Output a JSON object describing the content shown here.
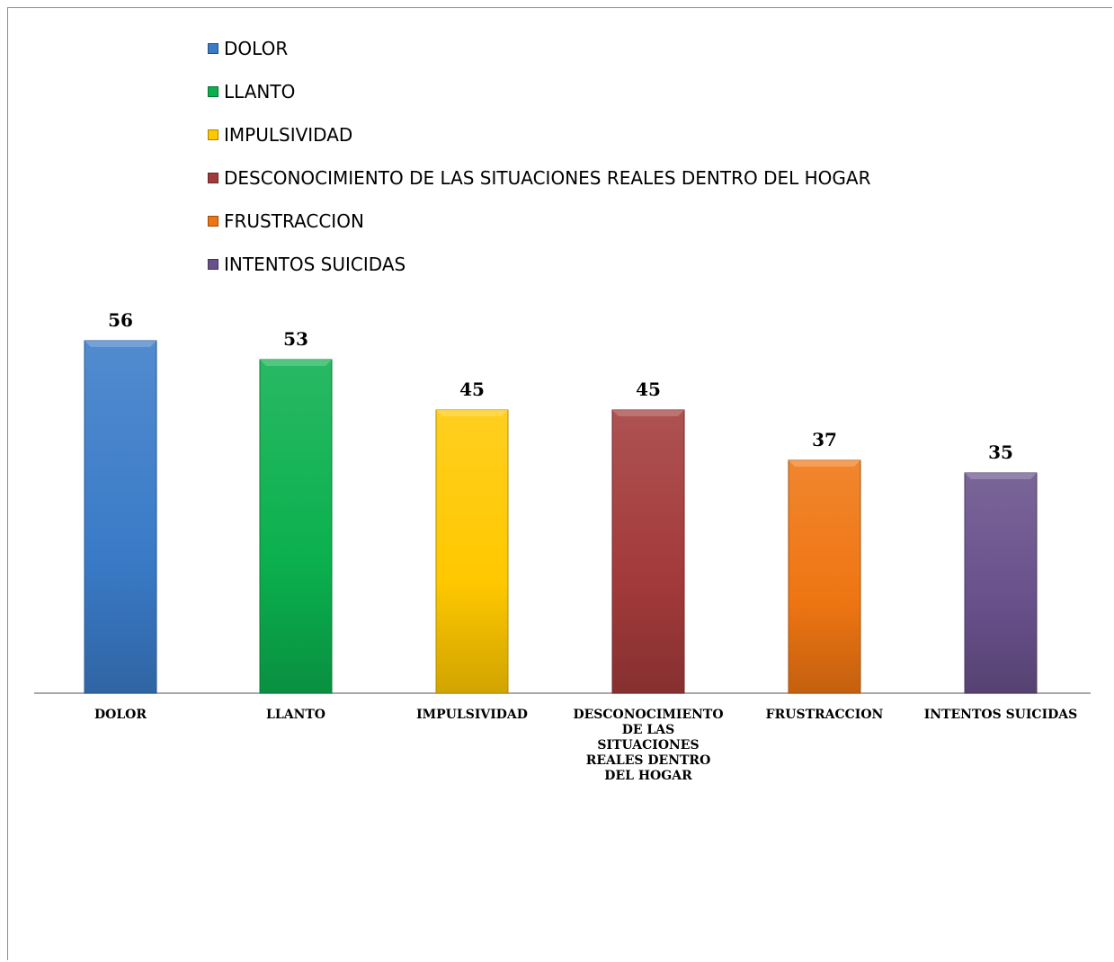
{
  "chart_data": {
    "type": "bar",
    "title": "",
    "xlabel": "",
    "ylabel": "",
    "ylim": [
      0,
      60
    ],
    "grid": false,
    "legend_position": "top",
    "categories": [
      "DOLOR",
      "LLANTO",
      "IMPULSIVIDAD",
      "DESCONOCIMIENTO DE LAS SITUACIONES REALES DENTRO DEL HOGAR",
      "FRUSTRACCION",
      "INTENTOS SUICIDAS"
    ],
    "category_label_lines": [
      [
        "DOLOR"
      ],
      [
        "LLANTO"
      ],
      [
        "IMPULSIVIDAD"
      ],
      [
        "DESCONOCIMIENTO",
        "DE LAS",
        "SITUACIONES",
        "REALES DENTRO",
        "DEL HOGAR"
      ],
      [
        "FRUSTRACCION"
      ],
      [
        "INTENTOS SUICIDAS"
      ]
    ],
    "values": [
      56,
      53,
      45,
      45,
      37,
      35
    ],
    "data_labels": [
      "56",
      "53",
      "45",
      "45",
      "37",
      "35"
    ],
    "colors": [
      "#3a7bc8",
      "#0bb04e",
      "#ffc800",
      "#a33a3a",
      "#ef7512",
      "#68508a"
    ],
    "legend": [
      "DOLOR",
      "LLANTO",
      "IMPULSIVIDAD",
      "DESCONOCIMIENTO DE LAS SITUACIONES REALES DENTRO DEL HOGAR",
      "FRUSTRACCION",
      "INTENTOS SUICIDAS"
    ]
  }
}
